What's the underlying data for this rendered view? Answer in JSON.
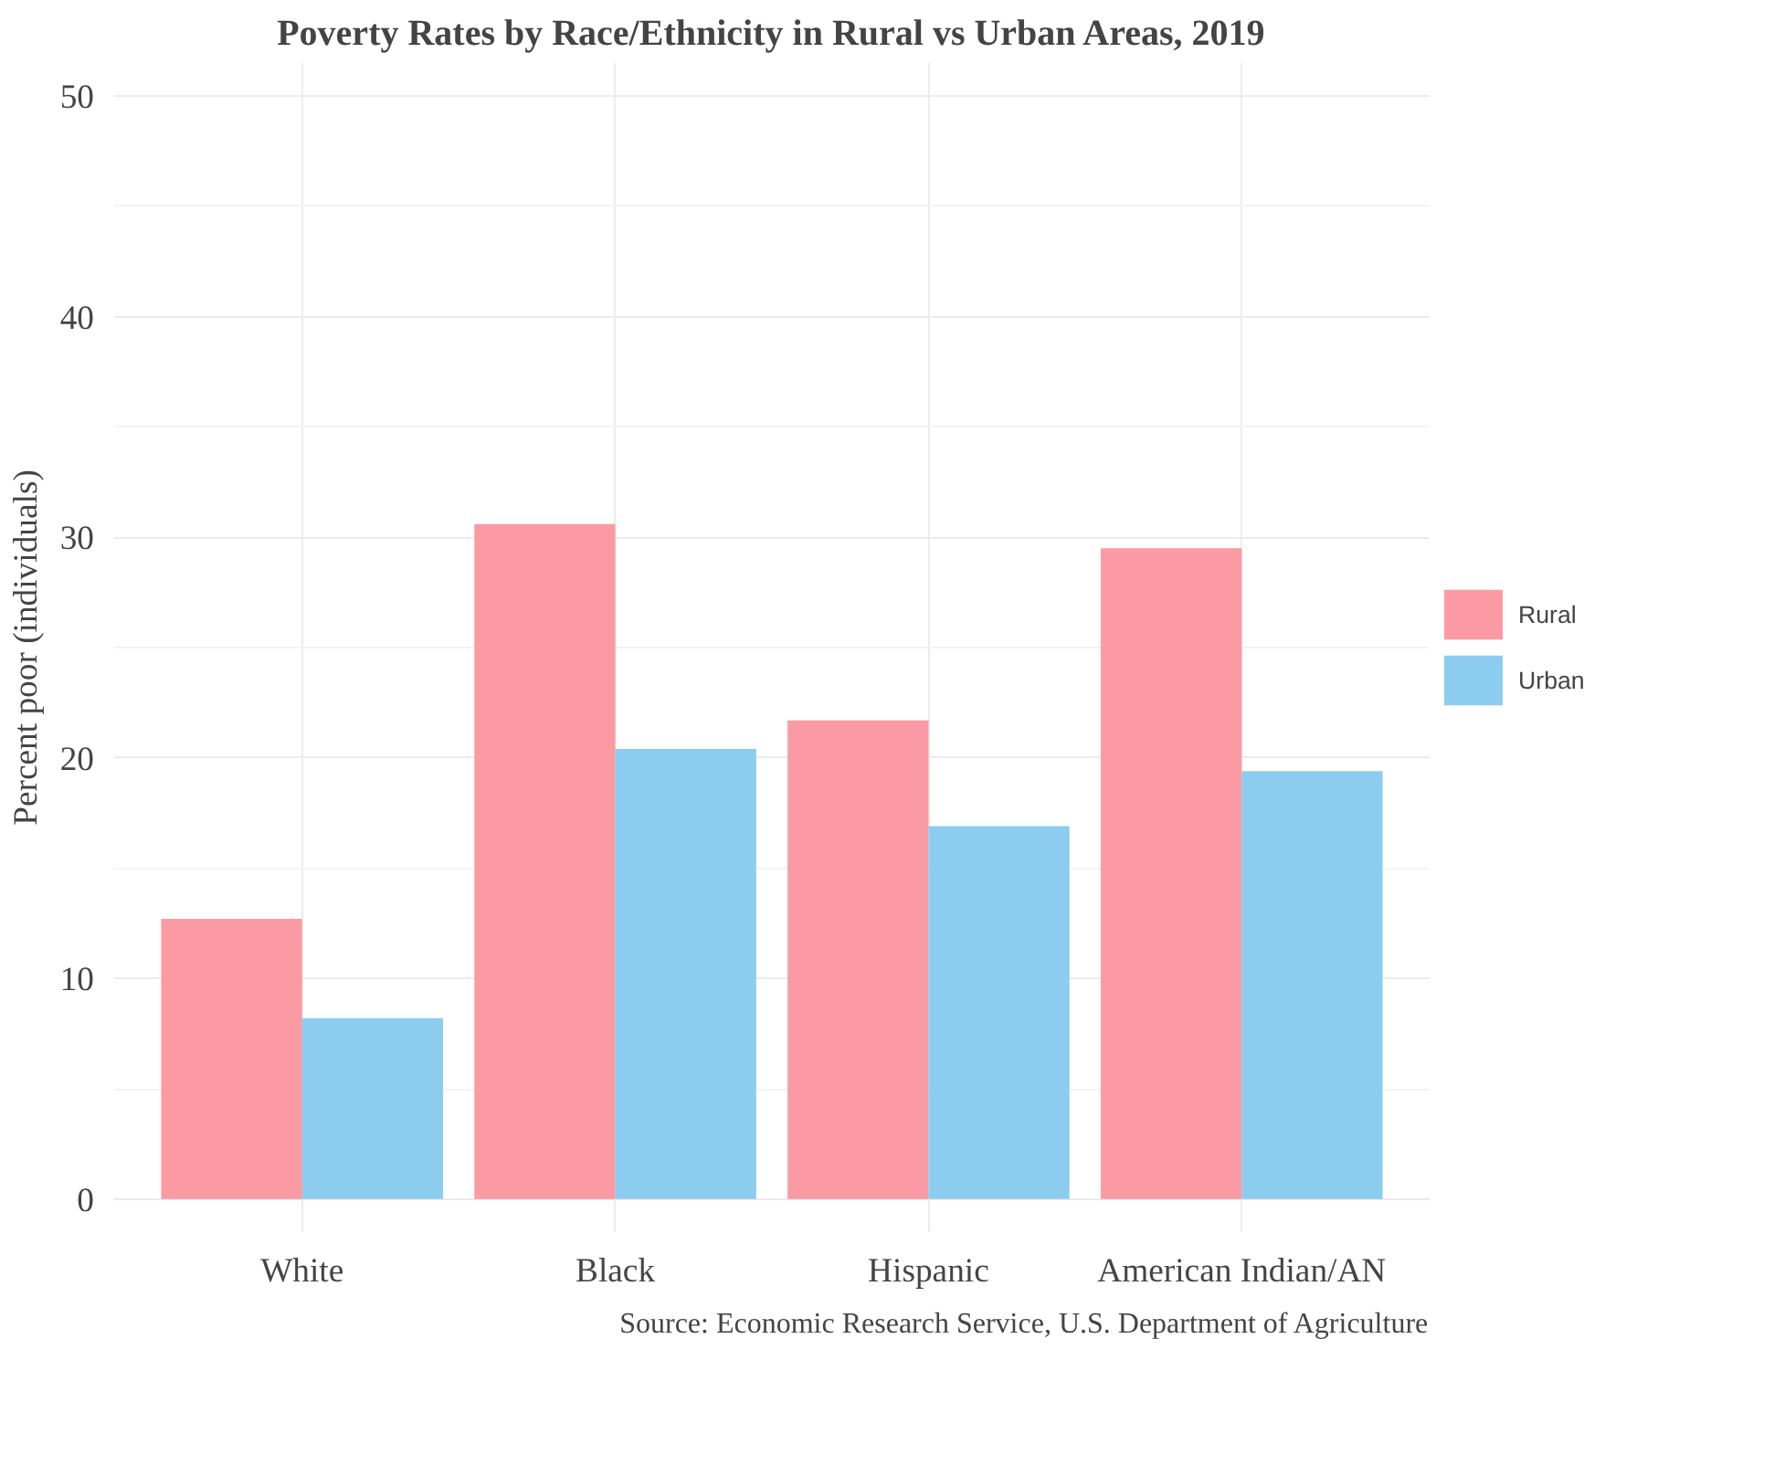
{
  "chart_data": {
    "type": "bar",
    "title": "Poverty Rates by Race/Ethnicity in Rural vs Urban Areas, 2019",
    "ylabel": "Percent poor (individuals)",
    "categories": [
      "White",
      "Black",
      "Hispanic",
      "American Indian/AN"
    ],
    "series": [
      {
        "name": "Rural",
        "color": "#fb9aa3",
        "values": [
          12.7,
          30.6,
          21.7,
          29.5
        ]
      },
      {
        "name": "Urban",
        "color": "#8ccdef",
        "values": [
          8.2,
          20.4,
          16.9,
          19.4
        ]
      }
    ],
    "ylim": [
      -1.5,
      51.5
    ],
    "yticks": [
      0,
      10,
      20,
      30,
      40,
      50
    ],
    "grid": true,
    "legend": "right",
    "annotations": [
      "Source: Economic Research Service, U.S. Department of Agriculture"
    ]
  }
}
